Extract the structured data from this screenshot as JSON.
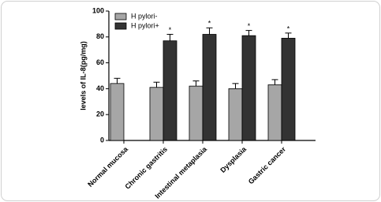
{
  "chart_data": {
    "type": "bar",
    "y_label": "levels of IL-8(pg/mg)",
    "categories": [
      "Normal mucosa",
      "Chronic gastritis",
      "Intestinal metaplasia",
      "Dysplasia",
      "Gastric cancer"
    ],
    "series": [
      {
        "name": "H pylori-",
        "color": "#a6a6a6",
        "values": [
          44,
          41,
          42,
          40,
          43
        ],
        "errors": [
          4,
          4,
          4,
          4,
          4
        ]
      },
      {
        "name": "H pylori+",
        "color": "#333333",
        "values": [
          null,
          77,
          82,
          81,
          79
        ],
        "errors": [
          null,
          5,
          5,
          4,
          4
        ],
        "markers": [
          null,
          "*",
          "*",
          "*",
          "*"
        ]
      }
    ],
    "ylim": [
      0,
      100
    ],
    "yticks": [
      0,
      20,
      40,
      60,
      80,
      100
    ],
    "legend": "upper left"
  }
}
